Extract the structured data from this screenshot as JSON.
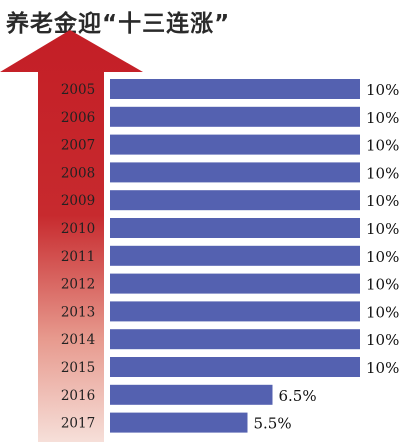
{
  "chart_data": {
    "type": "bar",
    "orientation": "horizontal",
    "title": "养老金迎“十三连涨”",
    "categories": [
      "2005",
      "2006",
      "2007",
      "2008",
      "2009",
      "2010",
      "2011",
      "2012",
      "2013",
      "2014",
      "2015",
      "2016",
      "2017"
    ],
    "values": [
      10,
      10,
      10,
      10,
      10,
      10,
      10,
      10,
      10,
      10,
      10,
      6.5,
      5.5
    ],
    "value_labels": [
      "10%",
      "10%",
      "10%",
      "10%",
      "10%",
      "10%",
      "10%",
      "10%",
      "10%",
      "10%",
      "10%",
      "6.5%",
      "5.5%"
    ],
    "xlim": [
      0,
      10
    ],
    "bar_color": "#5461b0",
    "arrow_color_top": "#c41e26",
    "arrow_color_bottom": "#f6dfd9",
    "grid": false,
    "legend": "none"
  }
}
